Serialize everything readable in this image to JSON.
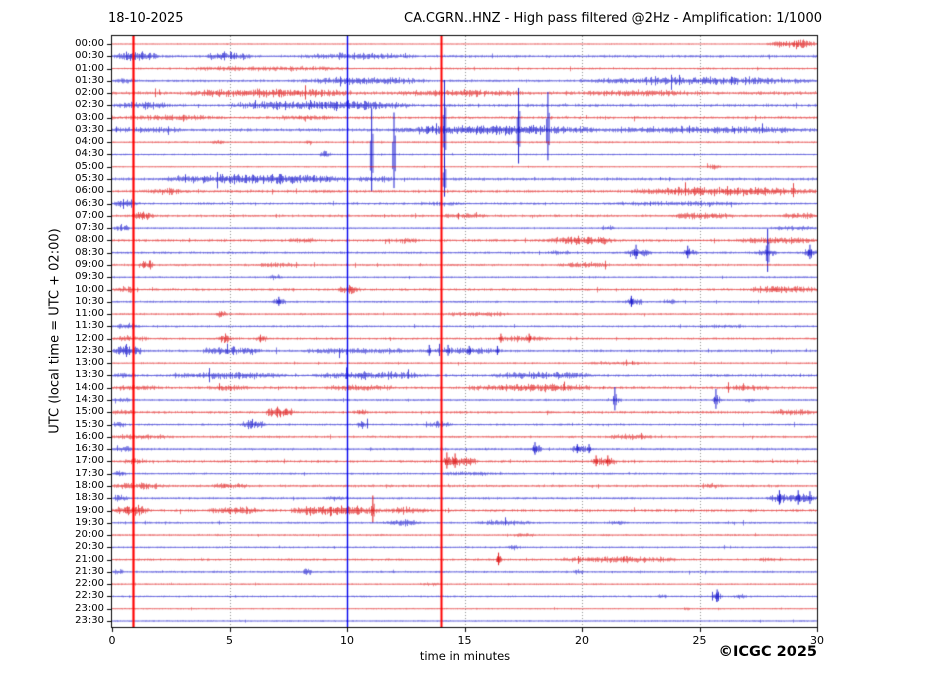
{
  "header": {
    "date": "18-10-2025",
    "title": "CA.CGRN..HNZ - High pass filtered @2Hz - Amplification: 1/1000"
  },
  "footer": {
    "copyright": "©ICGC 2025"
  },
  "chart_data": {
    "type": "line",
    "subtype": "helicorder-seismogram",
    "title": "CA.CGRN..HNZ - High pass filtered @2Hz - Amplification: 1/1000",
    "xlabel": "time in minutes",
    "ylabel": "UTC (local time = UTC + 02:00)",
    "x_range": [
      0,
      30
    ],
    "x_ticks": [
      0,
      5,
      10,
      15,
      20,
      25,
      30
    ],
    "grid_minutes": [
      5,
      10,
      15,
      20,
      25
    ],
    "legend": "none",
    "colors": {
      "red": "#dd1111",
      "blue": "#1414cc",
      "marker_red": "#ff0000",
      "marker_blue": "#0000ee",
      "grid": "#878787",
      "axis": "#000000"
    },
    "markers": [
      {
        "minute": 0.9,
        "color": "marker_red",
        "width": 2.2
      },
      {
        "minute": 10.0,
        "color": "marker_blue",
        "width": 1.4
      },
      {
        "minute": 14.0,
        "color": "marker_red",
        "width": 2.0
      }
    ],
    "rows": [
      {
        "label": "00:00",
        "color": "red",
        "noise": 0.55,
        "events": [
          [
            27.8,
            30,
            3.0
          ]
        ],
        "spikes": []
      },
      {
        "label": "00:30",
        "color": "blue",
        "noise": 1.15,
        "events": [
          [
            0,
            2,
            2.8
          ],
          [
            3.9,
            6,
            2.6
          ],
          [
            8,
            13,
            1.6
          ]
        ],
        "spikes": []
      },
      {
        "label": "01:00",
        "color": "red",
        "noise": 0.9,
        "events": [
          [
            3,
            10,
            1.3
          ]
        ],
        "spikes": []
      },
      {
        "label": "01:30",
        "color": "blue",
        "noise": 1.05,
        "events": [
          [
            8,
            13.5,
            2.0
          ],
          [
            19.8,
            30,
            2.2
          ],
          [
            0,
            1,
            1.3
          ]
        ],
        "spikes": []
      },
      {
        "label": "02:00",
        "color": "red",
        "noise": 1.45,
        "events": [
          [
            3,
            10.5,
            2.0
          ],
          [
            12,
            17.5,
            1.5
          ],
          [
            20,
            25,
            1.2
          ]
        ],
        "spikes": []
      },
      {
        "label": "02:30",
        "color": "blue",
        "noise": 1.25,
        "events": [
          [
            4.9,
            13,
            2.6
          ],
          [
            0,
            2.5,
            1.8
          ]
        ],
        "spikes": []
      },
      {
        "label": "03:00",
        "color": "red",
        "noise": 1.15,
        "events": [
          [
            0,
            5,
            1.3
          ],
          [
            7,
            9.5,
            1.5
          ]
        ],
        "spikes": []
      },
      {
        "label": "03:30",
        "color": "blue",
        "noise": 1.35,
        "events": [
          [
            11.8,
            21,
            2.6
          ],
          [
            21,
            30,
            1.5
          ],
          [
            0,
            3,
            1.2
          ]
        ],
        "spikes": [
          [
            14.15,
            50
          ],
          [
            17.3,
            42
          ],
          [
            18.55,
            38
          ]
        ]
      },
      {
        "label": "04:00",
        "color": "red",
        "noise": 0.85,
        "events": [
          [
            4.2,
            4.8,
            1.6
          ],
          [
            8.2,
            8.5,
            1.5
          ]
        ],
        "spikes": []
      },
      {
        "label": "04:30",
        "color": "blue",
        "noise": 0.7,
        "events": [
          [
            8.8,
            9.3,
            2.4
          ]
        ],
        "spikes": [
          [
            11.05,
            46
          ],
          [
            12.0,
            42
          ]
        ]
      },
      {
        "label": "05:00",
        "color": "red",
        "noise": 0.6,
        "events": [
          [
            25.3,
            25.9,
            2.0
          ]
        ],
        "spikes": []
      },
      {
        "label": "05:30",
        "color": "blue",
        "noise": 1.3,
        "events": [
          [
            2,
            10.3,
            2.6
          ],
          [
            10.3,
            12,
            1.6
          ]
        ],
        "spikes": [
          [
            14.15,
            22
          ]
        ]
      },
      {
        "label": "06:00",
        "color": "red",
        "noise": 1.2,
        "events": [
          [
            1.5,
            3.2,
            1.8
          ],
          [
            21.9,
            30,
            2.4
          ]
        ],
        "spikes": []
      },
      {
        "label": "06:30",
        "color": "blue",
        "noise": 1.0,
        "events": [
          [
            0,
            1.2,
            2.4
          ],
          [
            13,
            15,
            1.1
          ],
          [
            21,
            27,
            1.2
          ]
        ],
        "spikes": []
      },
      {
        "label": "07:00",
        "color": "red",
        "noise": 1.1,
        "events": [
          [
            0.8,
            1.8,
            2.6
          ],
          [
            23.8,
            26.5,
            1.8
          ],
          [
            28.5,
            30,
            1.8
          ],
          [
            14,
            16,
            1.2
          ]
        ],
        "spikes": []
      },
      {
        "label": "07:30",
        "color": "blue",
        "noise": 0.8,
        "events": [
          [
            0,
            0.8,
            2.2
          ],
          [
            20.8,
            21.4,
            1.5
          ],
          [
            28,
            30,
            1.3
          ]
        ],
        "spikes": []
      },
      {
        "label": "08:00",
        "color": "red",
        "noise": 1.2,
        "events": [
          [
            7.4,
            8.6,
            1.6
          ],
          [
            18.5,
            21.5,
            2.4
          ],
          [
            26.5,
            30,
            1.7
          ],
          [
            12,
            13,
            1.3
          ]
        ],
        "spikes": []
      },
      {
        "label": "08:30",
        "color": "blue",
        "noise": 1.0,
        "events": [
          [
            21.8,
            23,
            2.6
          ],
          [
            24.2,
            24.9,
            2.2
          ],
          [
            27.3,
            28.3,
            2.4
          ],
          [
            29.4,
            30,
            2.6
          ],
          [
            18.5,
            19.5,
            1.2
          ]
        ],
        "spikes": [
          [
            27.9,
            24
          ],
          [
            22.3,
            8
          ],
          [
            24.5,
            7
          ],
          [
            29.7,
            8
          ]
        ]
      },
      {
        "label": "09:00",
        "color": "red",
        "noise": 1.0,
        "events": [
          [
            1.1,
            1.8,
            3.0
          ],
          [
            18.8,
            21.2,
            1.7
          ],
          [
            6,
            8,
            1.2
          ]
        ],
        "spikes": []
      },
      {
        "label": "09:30",
        "color": "blue",
        "noise": 0.8,
        "events": [
          [
            6.7,
            7.3,
            1.4
          ]
        ],
        "spikes": []
      },
      {
        "label": "10:00",
        "color": "red",
        "noise": 1.1,
        "events": [
          [
            0,
            1,
            1.7
          ],
          [
            9.6,
            10.6,
            2.4
          ],
          [
            27,
            30,
            2.2
          ]
        ],
        "spikes": []
      },
      {
        "label": "10:30",
        "color": "blue",
        "noise": 0.9,
        "events": [
          [
            6.8,
            7.4,
            2.4
          ],
          [
            21.8,
            22.6,
            2.4
          ],
          [
            23.4,
            24,
            1.7
          ]
        ],
        "spikes": [
          [
            22.1,
            6
          ],
          [
            7.1,
            5
          ]
        ]
      },
      {
        "label": "11:00",
        "color": "red",
        "noise": 0.9,
        "events": [
          [
            4.4,
            4.9,
            2.4
          ],
          [
            14,
            17,
            1.2
          ]
        ],
        "spikes": []
      },
      {
        "label": "11:30",
        "color": "blue",
        "noise": 0.9,
        "events": [
          [
            0,
            1.2,
            1.5
          ],
          [
            25,
            27,
            1.0
          ]
        ],
        "spikes": []
      },
      {
        "label": "12:00",
        "color": "red",
        "noise": 1.0,
        "events": [
          [
            16.3,
            18.7,
            1.6
          ],
          [
            4.5,
            5.1,
            2.8
          ],
          [
            6.1,
            6.6,
            2.4
          ],
          [
            0,
            1.5,
            1.5
          ]
        ],
        "spikes": [
          [
            16.55,
            5
          ],
          [
            17.75,
            5
          ]
        ]
      },
      {
        "label": "12:30",
        "color": "blue",
        "noise": 1.1,
        "events": [
          [
            0,
            1.3,
            3.0
          ],
          [
            3.8,
            6.4,
            2.6
          ],
          [
            8,
            13,
            1.5
          ],
          [
            13.3,
            16.6,
            1.8
          ]
        ],
        "spikes": [
          [
            13.5,
            6
          ],
          [
            14.3,
            6
          ],
          [
            15.2,
            5
          ],
          [
            16.4,
            5
          ]
        ]
      },
      {
        "label": "13:00",
        "color": "red",
        "noise": 0.8,
        "events": [
          [
            20,
            23,
            1.0
          ]
        ],
        "spikes": []
      },
      {
        "label": "13:30",
        "color": "blue",
        "noise": 1.1,
        "events": [
          [
            2.5,
            7.5,
            1.8
          ],
          [
            8.5,
            13.5,
            2.2
          ],
          [
            16,
            20.5,
            2.0
          ],
          [
            0,
            1,
            1.5
          ]
        ],
        "spikes": []
      },
      {
        "label": "14:00",
        "color": "red",
        "noise": 1.2,
        "events": [
          [
            0,
            2,
            1.5
          ],
          [
            4,
            6,
            1.5
          ],
          [
            9,
            12,
            1.5
          ],
          [
            15,
            20.5,
            2.0
          ],
          [
            26,
            28,
            1.3
          ]
        ],
        "spikes": []
      },
      {
        "label": "14:30",
        "color": "blue",
        "noise": 0.9,
        "events": [
          [
            21.2,
            21.7,
            1.6
          ],
          [
            25.5,
            26,
            1.6
          ],
          [
            26.9,
            27.4,
            1.6
          ],
          [
            0,
            0.8,
            1.4
          ]
        ],
        "spikes": [
          [
            21.4,
            13
          ],
          [
            25.7,
            11
          ]
        ]
      },
      {
        "label": "15:00",
        "color": "red",
        "noise": 1.1,
        "events": [
          [
            6.5,
            7.8,
            3.0
          ],
          [
            10.2,
            11,
            1.7
          ],
          [
            0,
            1,
            1.3
          ],
          [
            28,
            30,
            1.5
          ]
        ],
        "spikes": []
      },
      {
        "label": "15:30",
        "color": "blue",
        "noise": 0.9,
        "events": [
          [
            5.5,
            6.5,
            2.8
          ],
          [
            10.4,
            10.9,
            2.4
          ],
          [
            13.3,
            14.5,
            1.8
          ],
          [
            0,
            0.6,
            1.8
          ]
        ],
        "spikes": []
      },
      {
        "label": "16:00",
        "color": "red",
        "noise": 1.0,
        "events": [
          [
            0,
            2.5,
            1.4
          ],
          [
            21,
            23,
            1.2
          ]
        ],
        "spikes": []
      },
      {
        "label": "16:30",
        "color": "blue",
        "noise": 1.0,
        "events": [
          [
            17.8,
            18.3,
            2.8
          ],
          [
            19.5,
            20.5,
            2.2
          ],
          [
            0,
            1,
            1.5
          ]
        ],
        "spikes": [
          [
            18.0,
            7
          ],
          [
            19.8,
            5
          ],
          [
            20.3,
            5
          ]
        ]
      },
      {
        "label": "17:00",
        "color": "red",
        "noise": 1.1,
        "events": [
          [
            13.9,
            15.6,
            3.0
          ],
          [
            20.3,
            21.5,
            2.4
          ],
          [
            0.5,
            1.5,
            1.6
          ]
        ],
        "spikes": [
          [
            14.25,
            9
          ],
          [
            14.6,
            8
          ],
          [
            20.6,
            6
          ],
          [
            21.1,
            6
          ]
        ]
      },
      {
        "label": "17:30",
        "color": "blue",
        "noise": 0.9,
        "events": [
          [
            14,
            16.5,
            1.3
          ],
          [
            0,
            0.6,
            1.8
          ]
        ],
        "spikes": []
      },
      {
        "label": "18:00",
        "color": "red",
        "noise": 1.1,
        "events": [
          [
            0,
            2.2,
            1.9
          ],
          [
            4.2,
            5.8,
            1.5
          ],
          [
            25,
            26,
            1.2
          ]
        ],
        "spikes": []
      },
      {
        "label": "18:30",
        "color": "blue",
        "noise": 1.0,
        "events": [
          [
            27.8,
            30,
            3.0
          ],
          [
            0,
            0.7,
            1.8
          ],
          [
            9,
            10,
            1.2
          ]
        ],
        "spikes": [
          [
            28.4,
            8
          ],
          [
            29.2,
            8
          ],
          [
            29.7,
            7
          ]
        ]
      },
      {
        "label": "19:00",
        "color": "red",
        "noise": 1.2,
        "events": [
          [
            0,
            1.6,
            3.0
          ],
          [
            4,
            6.5,
            2.0
          ],
          [
            7.5,
            11.5,
            2.8
          ],
          [
            11.5,
            13.5,
            1.8
          ]
        ],
        "spikes": [
          [
            11.1,
            15
          ]
        ]
      },
      {
        "label": "19:30",
        "color": "blue",
        "noise": 0.9,
        "events": [
          [
            11.5,
            13.2,
            2.0
          ],
          [
            15.3,
            18,
            1.4
          ],
          [
            21,
            22,
            1.2
          ]
        ],
        "spikes": []
      },
      {
        "label": "20:00",
        "color": "red",
        "noise": 0.85,
        "events": [
          [
            17,
            18,
            1.1
          ]
        ],
        "spikes": []
      },
      {
        "label": "20:30",
        "color": "blue",
        "noise": 0.8,
        "events": [
          [
            16.8,
            17.4,
            1.3
          ]
        ],
        "spikes": []
      },
      {
        "label": "21:00",
        "color": "red",
        "noise": 1.0,
        "events": [
          [
            16.3,
            16.6,
            2.6
          ],
          [
            18.9,
            24.2,
            1.7
          ],
          [
            27.5,
            28.2,
            1.5
          ]
        ],
        "spikes": [
          [
            16.45,
            7
          ]
        ]
      },
      {
        "label": "21:30",
        "color": "blue",
        "noise": 0.9,
        "events": [
          [
            8.1,
            8.5,
            2.4
          ],
          [
            19.6,
            20.1,
            1.5
          ],
          [
            0,
            0.5,
            1.4
          ]
        ],
        "spikes": []
      },
      {
        "label": "22:00",
        "color": "red",
        "noise": 0.7,
        "events": [
          [
            13,
            14,
            0.9
          ]
        ],
        "spikes": []
      },
      {
        "label": "22:30",
        "color": "blue",
        "noise": 0.8,
        "events": [
          [
            23.2,
            23.6,
            1.7
          ],
          [
            25.5,
            26,
            2.8
          ],
          [
            26.3,
            27,
            1.5
          ]
        ],
        "spikes": [
          [
            25.75,
            7
          ]
        ]
      },
      {
        "label": "23:00",
        "color": "red",
        "noise": 0.6,
        "events": [
          [
            24.3,
            24.6,
            1.3
          ]
        ],
        "spikes": []
      },
      {
        "label": "23:30",
        "color": "blue",
        "noise": 0.7,
        "events": [],
        "spikes": []
      }
    ]
  }
}
